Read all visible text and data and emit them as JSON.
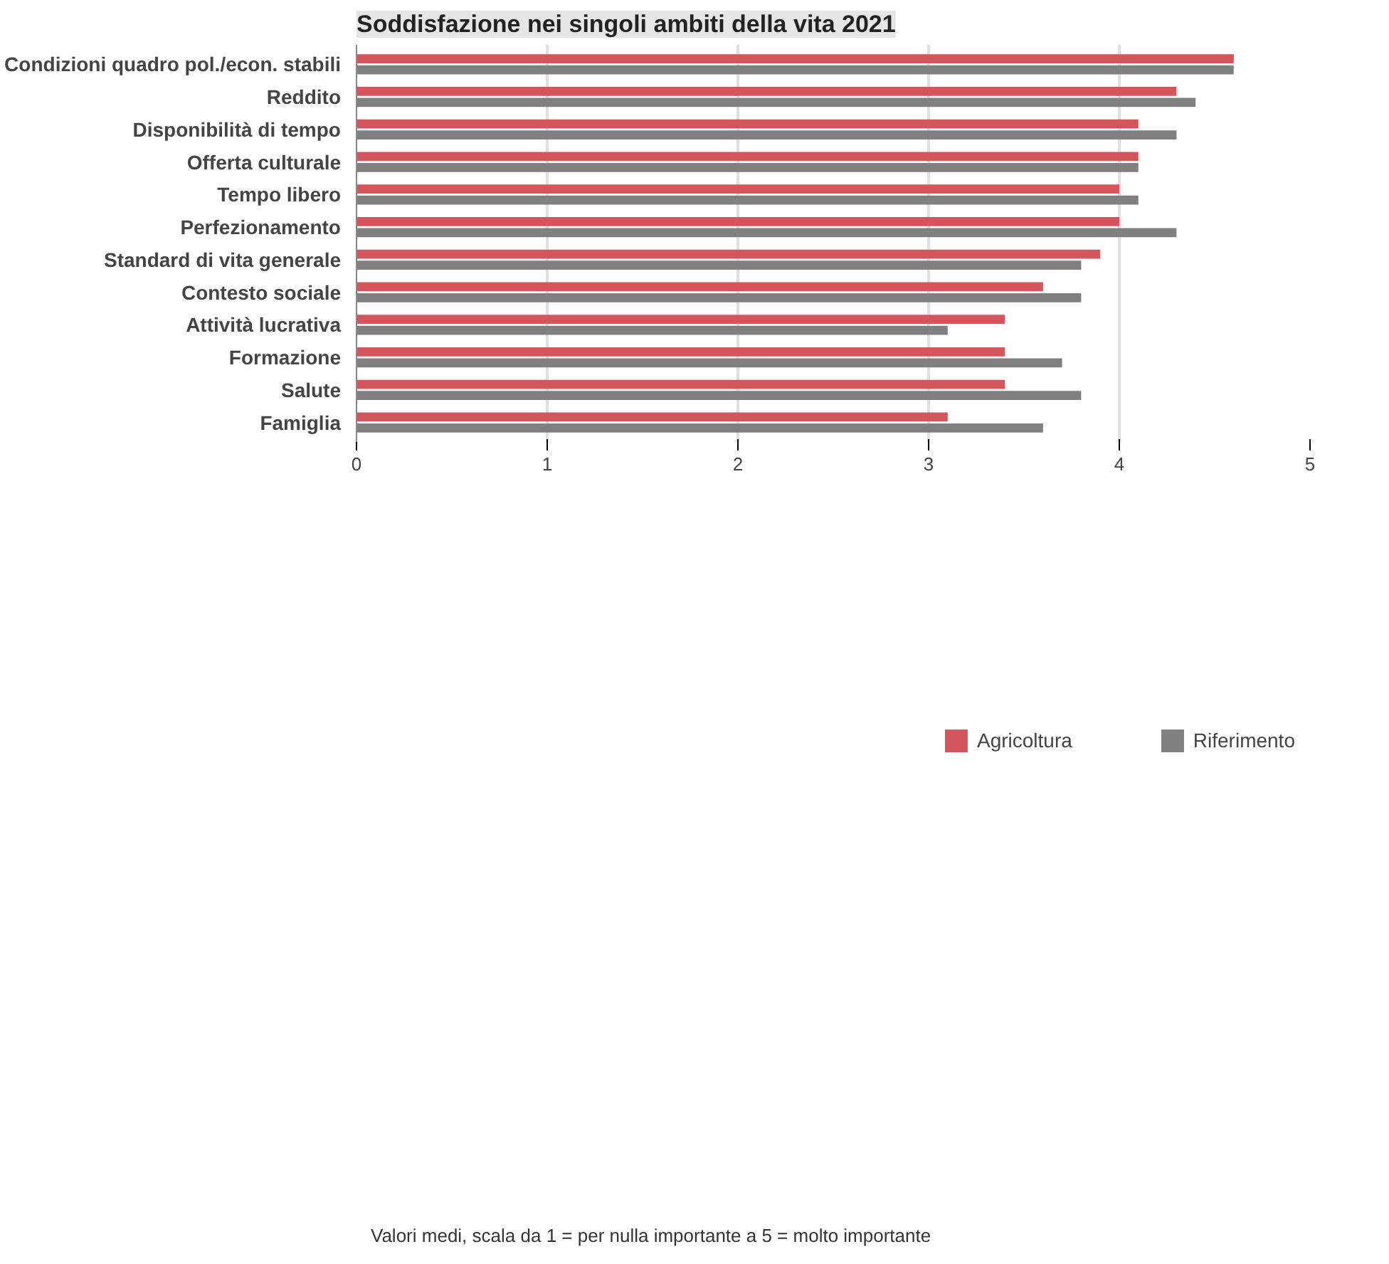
{
  "chart_data": {
    "type": "bar",
    "orientation": "horizontal",
    "title": "Soddisfazione nei singoli ambiti della vita 2021",
    "categories": [
      "Condizioni quadro pol./econ. stabili",
      "Reddito",
      "Disponibilità di tempo",
      "Offerta culturale",
      "Tempo libero",
      "Perfezionamento",
      "Standard di vita generale",
      "Contesto sociale",
      "Attività lucrativa",
      "Formazione",
      "Salute",
      "Famiglia"
    ],
    "series": [
      {
        "name": "Agricoltura",
        "color": "#d4555c",
        "values": [
          4.6,
          4.3,
          4.1,
          4.1,
          4.0,
          4.0,
          3.9,
          3.6,
          3.4,
          3.4,
          3.4,
          3.1
        ]
      },
      {
        "name": "Riferimento",
        "color": "#808080",
        "values": [
          4.6,
          4.4,
          4.3,
          4.1,
          4.1,
          4.3,
          3.8,
          3.8,
          3.1,
          3.7,
          3.8,
          3.6
        ]
      }
    ],
    "xlim": [
      0,
      5
    ],
    "xticks": [
      0,
      1,
      2,
      3,
      4,
      5
    ],
    "grid": "x",
    "legend": "bottom",
    "annotations": [
      "Valori medi, scala da 1 = per nulla importante a 5 = molto importante"
    ]
  }
}
